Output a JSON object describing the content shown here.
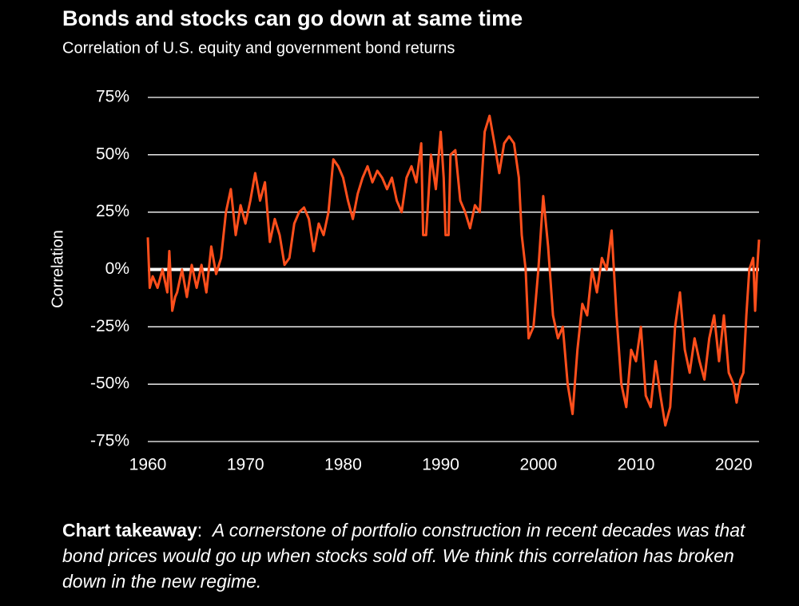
{
  "chart_data": {
    "type": "line",
    "title": "Bonds and stocks can go down at same time",
    "subtitle": "Correlation of U.S. equity and government bond returns",
    "y_label": "Correlation",
    "xlim": [
      1960,
      2022.6
    ],
    "xticks": [
      1960,
      1970,
      1980,
      1990,
      2000,
      2010,
      2020
    ],
    "ylim": [
      -75,
      75
    ],
    "yticks": [
      {
        "value": -75,
        "label": "-75%"
      },
      {
        "value": -50,
        "label": "-50%"
      },
      {
        "value": -25,
        "label": "-25%"
      },
      {
        "value": 0,
        "label": "0%"
      },
      {
        "value": 25,
        "label": "25%"
      },
      {
        "value": 50,
        "label": "50%"
      },
      {
        "value": 75,
        "label": "75%"
      }
    ],
    "grid": true,
    "series": [
      {
        "color": "#ff4f1c",
        "x": [
          1960,
          1960.2,
          1960.5,
          1961,
          1961.5,
          1962,
          1962.2,
          1962.5,
          1962.8,
          1963,
          1963.5,
          1964,
          1964.5,
          1965,
          1965.5,
          1966,
          1966.5,
          1967,
          1967.5,
          1968,
          1968.5,
          1969,
          1969.5,
          1970,
          1970.5,
          1971,
          1971.5,
          1972,
          1972.5,
          1973,
          1973.5,
          1974,
          1974.5,
          1975,
          1975.5,
          1976,
          1976.5,
          1977,
          1977.5,
          1978,
          1978.5,
          1979,
          1979.5,
          1980,
          1980.5,
          1981,
          1981.5,
          1982,
          1982.5,
          1983,
          1983.5,
          1984,
          1984.5,
          1985,
          1985.5,
          1986,
          1986.5,
          1987,
          1987.5,
          1988,
          1988.2,
          1988.5,
          1989,
          1989.5,
          1990,
          1990.3,
          1990.5,
          1990.8,
          1991,
          1991.5,
          1992,
          1992.5,
          1993,
          1993.5,
          1994,
          1994.5,
          1995,
          1995.5,
          1996,
          1996.5,
          1997,
          1997.5,
          1998,
          1998.3,
          1998.7,
          1999,
          1999.5,
          2000,
          2000.5,
          2001,
          2001.5,
          2002,
          2002.5,
          2003,
          2003.5,
          2004,
          2004.5,
          2005,
          2005.5,
          2006,
          2006.5,
          2007,
          2007.5,
          2008,
          2008.5,
          2009,
          2009.5,
          2010,
          2010.5,
          2011,
          2011.5,
          2012,
          2012.5,
          2013,
          2013.5,
          2014,
          2014.5,
          2015,
          2015.5,
          2016,
          2016.5,
          2017,
          2017.5,
          2018,
          2018.5,
          2019,
          2019.5,
          2020,
          2020.3,
          2020.7,
          2021,
          2021.3,
          2021.6,
          2022,
          2022.2,
          2022.4,
          2022.6
        ],
        "values": [
          14,
          -8,
          -3,
          -8,
          0,
          -10,
          8,
          -18,
          -12,
          -10,
          0,
          -12,
          2,
          -8,
          2,
          -10,
          10,
          -2,
          5,
          25,
          35,
          15,
          28,
          20,
          30,
          42,
          30,
          38,
          12,
          22,
          15,
          2,
          5,
          20,
          25,
          27,
          22,
          8,
          20,
          15,
          25,
          48,
          45,
          40,
          30,
          22,
          33,
          40,
          45,
          38,
          43,
          40,
          35,
          40,
          30,
          25,
          40,
          45,
          38,
          55,
          15,
          15,
          50,
          35,
          60,
          40,
          15,
          15,
          50,
          52,
          30,
          25,
          18,
          28,
          25,
          60,
          67,
          55,
          42,
          55,
          58,
          55,
          40,
          15,
          0,
          -30,
          -25,
          0,
          32,
          10,
          -20,
          -30,
          -25,
          -50,
          -63,
          -35,
          -15,
          -20,
          0,
          -10,
          5,
          0,
          17,
          -20,
          -50,
          -60,
          -35,
          -40,
          -25,
          -55,
          -60,
          -40,
          -55,
          -68,
          -60,
          -25,
          -10,
          -35,
          -45,
          -30,
          -40,
          -48,
          -30,
          -20,
          -40,
          -20,
          -45,
          -50,
          -58,
          -48,
          -45,
          -20,
          0,
          5,
          -18,
          0,
          13
        ]
      }
    ]
  },
  "takeaway": {
    "label": "Chart takeaway",
    "separator": ":",
    "text": "A cornerstone of portfolio construction in recent decades was that bond prices would go up when stocks sold off. We think this correlation has broken down in the new regime."
  }
}
